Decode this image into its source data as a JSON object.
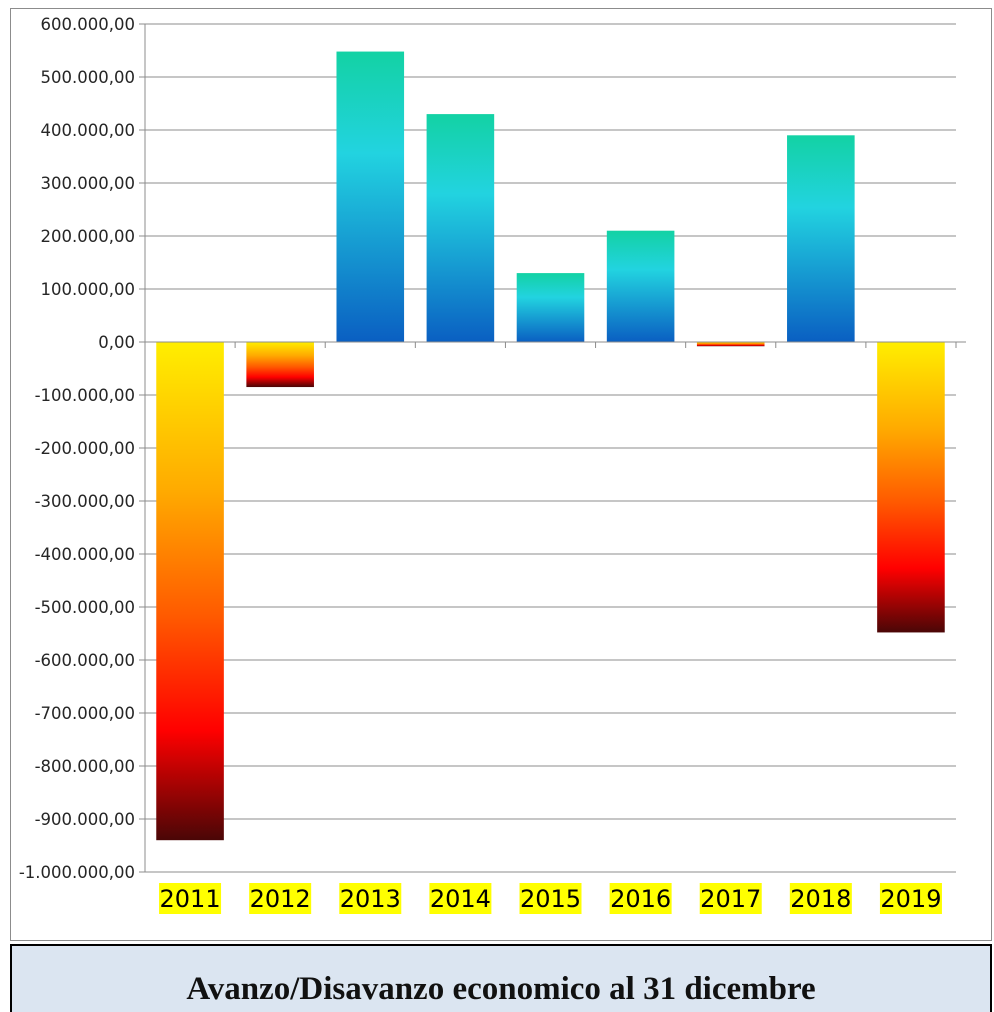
{
  "chart_data": {
    "type": "bar",
    "title": "Avanzo/Disavanzo economico al 31 dicembre",
    "categories": [
      "2011",
      "2012",
      "2013",
      "2014",
      "2015",
      "2016",
      "2017",
      "2018",
      "2019"
    ],
    "values": [
      -940000,
      -85000,
      548000,
      430000,
      130000,
      210000,
      -8000,
      390000,
      -548000
    ],
    "ylim": [
      -1000000,
      600000
    ],
    "yticks": [
      600000,
      500000,
      400000,
      300000,
      200000,
      100000,
      0,
      -100000,
      -200000,
      -300000,
      -400000,
      -500000,
      -600000,
      -700000,
      -800000,
      -900000,
      -1000000
    ],
    "ytick_labels": [
      "600.000,00",
      "500.000,00",
      "400.000,00",
      "300.000,00",
      "200.000,00",
      "100.000,00",
      "0,00",
      "-100.000,00",
      "-200.000,00",
      "-300.000,00",
      "-400.000,00",
      "-500.000,00",
      "-600.000,00",
      "-700.000,00",
      "-800.000,00",
      "-900.000,00",
      "-1.000.000,00"
    ],
    "grid": true,
    "xlabel": "",
    "ylabel": "",
    "colors": {
      "positive_top": "#13d2a4",
      "positive_mid": "#22d3e0",
      "positive_bottom": "#0a5fc2",
      "negative_top": "#ffee00",
      "negative_mid1": "#ffaa00",
      "negative_mid2": "#ff5a00",
      "negative_mid3": "#ff0000",
      "negative_bottom": "#4a0606",
      "category_highlight": "#ffff00",
      "gridline": "#8c8c8c",
      "caption_bg": "#dbe5f1"
    }
  }
}
